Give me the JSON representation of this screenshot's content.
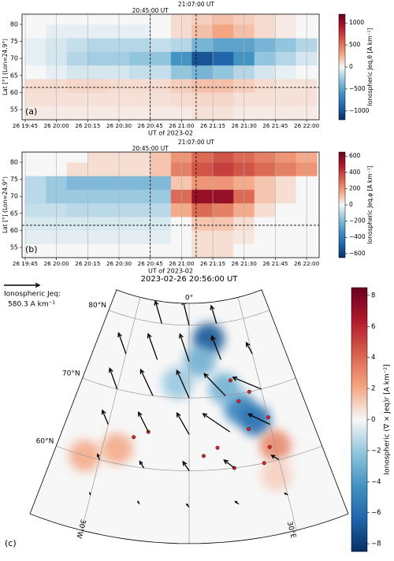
{
  "chart_data": [
    {
      "type": "heatmap",
      "panel_label": "(a)",
      "xlabel": "UT of 2023-02",
      "ylabel": "Lat [°] (Lon=24.9°)",
      "colorbar_label": "Ionospheric Jeq,θ [A km⁻¹]",
      "colormap": "RdBu_r",
      "grid": "x",
      "xlim": [
        "2023-02-26T19:43:30",
        "2023-02-26T22:06:00"
      ],
      "ylim": [
        52,
        83
      ],
      "zlim": [
        -1200,
        1200
      ],
      "xticks": [
        {
          "value": "2023-02-26T19:45",
          "label": "26 19:45"
        },
        {
          "value": "2023-02-26T20:00",
          "label": "26 20:00"
        },
        {
          "value": "2023-02-26T20:15",
          "label": "26 20:15"
        },
        {
          "value": "2023-02-26T20:30",
          "label": "26 20:30"
        },
        {
          "value": "2023-02-26T20:45",
          "label": "26 20:45"
        },
        {
          "value": "2023-02-26T21:00",
          "label": "26 21:00"
        },
        {
          "value": "2023-02-26T21:15",
          "label": "26 21:15"
        },
        {
          "value": "2023-02-26T21:30",
          "label": "26 21:30"
        },
        {
          "value": "2023-02-26T21:45",
          "label": "26 21:45"
        },
        {
          "value": "2023-02-26T22:00",
          "label": "26 22:00"
        }
      ],
      "yticks": [
        55,
        60,
        65,
        70,
        75,
        80
      ],
      "zticks": [
        {
          "value": 1000,
          "label": "1000"
        },
        {
          "value": 500,
          "label": "500"
        },
        {
          "value": 0,
          "label": "0"
        },
        {
          "value": -500,
          "label": "−500"
        },
        {
          "value": -1000,
          "label": "−1000"
        }
      ],
      "markers": [
        {
          "label": "20:45:00 UT",
          "time": "2023-02-26T20:45:00"
        },
        {
          "label": "21:07:00 UT",
          "time": "2023-02-26T21:07:00"
        }
      ],
      "hline": 61.5,
      "x": [
        "2023-02-26T19:50",
        "2023-02-26T20:00",
        "2023-02-26T20:10",
        "2023-02-26T20:20",
        "2023-02-26T20:30",
        "2023-02-26T20:40",
        "2023-02-26T20:50",
        "2023-02-26T21:00",
        "2023-02-26T21:10",
        "2023-02-26T21:20",
        "2023-02-26T21:30",
        "2023-02-26T21:40",
        "2023-02-26T21:50",
        "2023-02-26T22:00"
      ],
      "y": [
        54,
        58,
        62,
        66,
        70,
        74,
        78,
        82
      ],
      "z": [
        [
          50,
          50,
          50,
          50,
          50,
          50,
          50,
          50,
          80,
          80,
          50,
          50,
          50,
          50
        ],
        [
          80,
          80,
          80,
          80,
          80,
          80,
          80,
          100,
          120,
          120,
          80,
          80,
          80,
          80
        ],
        [
          100,
          100,
          120,
          120,
          100,
          100,
          100,
          150,
          200,
          200,
          150,
          100,
          80,
          80
        ],
        [
          0,
          -50,
          -100,
          -100,
          -100,
          -150,
          -150,
          -300,
          -400,
          -300,
          -200,
          -100,
          -50,
          0
        ],
        [
          -50,
          -100,
          -200,
          -250,
          -250,
          -300,
          -300,
          -600,
          -1000,
          -900,
          -600,
          -300,
          -200,
          -100
        ],
        [
          -50,
          -100,
          -150,
          -200,
          -200,
          -200,
          -150,
          -200,
          -400,
          -500,
          -500,
          -400,
          -300,
          -200
        ],
        [
          0,
          -50,
          -50,
          -50,
          -50,
          -50,
          0,
          100,
          200,
          300,
          200,
          100,
          50,
          0
        ],
        [
          0,
          0,
          0,
          0,
          0,
          0,
          0,
          100,
          150,
          200,
          150,
          100,
          50,
          0
        ]
      ]
    },
    {
      "type": "heatmap",
      "panel_label": "(b)",
      "xlabel": "UT of 2023-02",
      "ylabel": "Lat [°] (Lon=24.9°)",
      "colorbar_label": "Ionospheric Jeq,φ [A km⁻¹]",
      "colormap": "RdBu_r",
      "grid": "x",
      "xlim": [
        "2023-02-26T19:43:30",
        "2023-02-26T22:06:00"
      ],
      "ylim": [
        52,
        83
      ],
      "zlim": [
        -650,
        650
      ],
      "xticks": [
        {
          "value": "2023-02-26T19:45",
          "label": "26 19:45"
        },
        {
          "value": "2023-02-26T20:00",
          "label": "26 20:00"
        },
        {
          "value": "2023-02-26T20:15",
          "label": "26 20:15"
        },
        {
          "value": "2023-02-26T20:30",
          "label": "26 20:30"
        },
        {
          "value": "2023-02-26T20:45",
          "label": "26 20:45"
        },
        {
          "value": "2023-02-26T21:00",
          "label": "26 21:00"
        },
        {
          "value": "2023-02-26T21:15",
          "label": "26 21:15"
        },
        {
          "value": "2023-02-26T21:30",
          "label": "26 21:30"
        },
        {
          "value": "2023-02-26T21:45",
          "label": "26 21:45"
        },
        {
          "value": "2023-02-26T22:00",
          "label": "26 22:00"
        }
      ],
      "yticks": [
        55,
        60,
        65,
        70,
        75,
        80
      ],
      "zticks": [
        {
          "value": 600,
          "label": "600"
        },
        {
          "value": 400,
          "label": "400"
        },
        {
          "value": 200,
          "label": "200"
        },
        {
          "value": 0,
          "label": "0"
        },
        {
          "value": -200,
          "label": "−200"
        },
        {
          "value": -400,
          "label": "−400"
        },
        {
          "value": -600,
          "label": "−600"
        }
      ],
      "markers": [
        {
          "label": "20:45:00 UT",
          "time": "2023-02-26T20:45:00"
        },
        {
          "label": "21:07:00 UT",
          "time": "2023-02-26T21:07:00"
        }
      ],
      "hline": 61.5,
      "x": [
        "2023-02-26T19:50",
        "2023-02-26T20:00",
        "2023-02-26T20:10",
        "2023-02-26T20:20",
        "2023-02-26T20:30",
        "2023-02-26T20:40",
        "2023-02-26T20:50",
        "2023-02-26T21:00",
        "2023-02-26T21:10",
        "2023-02-26T21:20",
        "2023-02-26T21:30",
        "2023-02-26T21:40",
        "2023-02-26T21:50",
        "2023-02-26T22:00"
      ],
      "y": [
        54,
        58,
        62,
        66,
        70,
        74,
        78,
        82
      ],
      "z": [
        [
          0,
          0,
          0,
          0,
          0,
          0,
          0,
          0,
          50,
          50,
          0,
          0,
          0,
          0
        ],
        [
          -30,
          -30,
          -30,
          -30,
          -30,
          -30,
          -30,
          0,
          50,
          50,
          30,
          0,
          0,
          0
        ],
        [
          -50,
          -50,
          -50,
          -50,
          -50,
          -50,
          -50,
          0,
          100,
          100,
          50,
          0,
          0,
          0
        ],
        [
          -80,
          -80,
          -100,
          -100,
          -100,
          -100,
          -100,
          150,
          300,
          250,
          150,
          50,
          0,
          0
        ],
        [
          -100,
          -150,
          -150,
          -150,
          -150,
          -150,
          -150,
          300,
          550,
          550,
          300,
          100,
          50,
          0
        ],
        [
          -100,
          -150,
          -200,
          -200,
          -200,
          -200,
          -200,
          100,
          200,
          200,
          150,
          100,
          50,
          0
        ],
        [
          0,
          0,
          50,
          50,
          50,
          50,
          100,
          250,
          350,
          400,
          350,
          300,
          250,
          200
        ],
        [
          0,
          0,
          0,
          50,
          50,
          50,
          100,
          200,
          300,
          350,
          300,
          250,
          200,
          150
        ]
      ]
    },
    {
      "type": "vector-map",
      "panel_label": "(c)",
      "title": "2023-02-26 20:56:00 UT",
      "reference_label": "Ionospheric Jeq:",
      "reference": {
        "value": 580.3,
        "label": "580.3 A km⁻¹"
      },
      "colorbar_label": "Ionospheric (∇ × Jeq)r [A km⁻²]",
      "colormap": "RdBu_r",
      "clim": [
        -8.5,
        8.5
      ],
      "cticks": [
        {
          "value": 8,
          "label": "8"
        },
        {
          "value": 6,
          "label": "6"
        },
        {
          "value": 4,
          "label": "4"
        },
        {
          "value": 2,
          "label": "2"
        },
        {
          "value": 0,
          "label": "0"
        },
        {
          "value": -2,
          "label": "−2"
        },
        {
          "value": -4,
          "label": "−4"
        },
        {
          "value": -6,
          "label": "−6"
        },
        {
          "value": -8,
          "label": "−8"
        }
      ],
      "lonlim": [
        -45,
        45
      ],
      "latlim": [
        50,
        83
      ],
      "lat_lines": [
        {
          "value": 60,
          "label": "60°N"
        },
        {
          "value": 70,
          "label": "70°N"
        },
        {
          "value": 80,
          "label": "80°N"
        }
      ],
      "lon_lines": [
        {
          "value": -30,
          "label": "30°W"
        },
        {
          "value": 0,
          "label": "0°"
        },
        {
          "value": 30,
          "label": "30°E"
        }
      ],
      "curl": [
        [
          10,
          78,
          -7
        ],
        [
          20,
          68,
          -5
        ],
        [
          25,
          66,
          -6
        ],
        [
          30,
          62,
          3
        ],
        [
          -5,
          72,
          -2
        ],
        [
          5,
          75,
          -3
        ],
        [
          -25,
          62,
          2
        ],
        [
          15,
          71,
          -3
        ],
        [
          28,
          58,
          1
        ],
        [
          -35,
          60,
          2
        ]
      ],
      "stations": [
        [
          12,
          78
        ],
        [
          25,
          70
        ],
        [
          20,
          69
        ],
        [
          18,
          72
        ],
        [
          28,
          62
        ],
        [
          25,
          60
        ],
        [
          10,
          63
        ],
        [
          5,
          62
        ],
        [
          -15,
          65
        ],
        [
          -20,
          64
        ],
        [
          22,
          65
        ],
        [
          30,
          66
        ],
        [
          15,
          60
        ]
      ],
      "vectors": [
        [
          -15,
          80,
          -150,
          350
        ],
        [
          0,
          80,
          -100,
          400
        ],
        [
          15,
          80,
          -50,
          300
        ],
        [
          -30,
          75,
          -200,
          300
        ],
        [
          -15,
          75,
          -200,
          400
        ],
        [
          0,
          75,
          -150,
          450
        ],
        [
          15,
          75,
          -100,
          400
        ],
        [
          30,
          75,
          -50,
          200
        ],
        [
          -30,
          70,
          -200,
          300
        ],
        [
          -15,
          70,
          -250,
          400
        ],
        [
          0,
          70,
          -200,
          450
        ],
        [
          15,
          70,
          -300,
          400
        ],
        [
          30,
          70,
          -400,
          300
        ],
        [
          -30,
          65,
          -150,
          200
        ],
        [
          -15,
          65,
          -200,
          300
        ],
        [
          0,
          65,
          -200,
          350
        ],
        [
          15,
          65,
          -400,
          350
        ],
        [
          30,
          65,
          -300,
          250
        ],
        [
          -30,
          60,
          -50,
          80
        ],
        [
          -15,
          60,
          -80,
          100
        ],
        [
          0,
          60,
          -100,
          150
        ],
        [
          15,
          60,
          -150,
          150
        ],
        [
          30,
          60,
          -100,
          100
        ],
        [
          -30,
          55,
          -20,
          30
        ],
        [
          -15,
          55,
          -30,
          40
        ],
        [
          0,
          55,
          -40,
          50
        ],
        [
          15,
          55,
          -50,
          50
        ],
        [
          30,
          55,
          -40,
          40
        ]
      ]
    }
  ]
}
